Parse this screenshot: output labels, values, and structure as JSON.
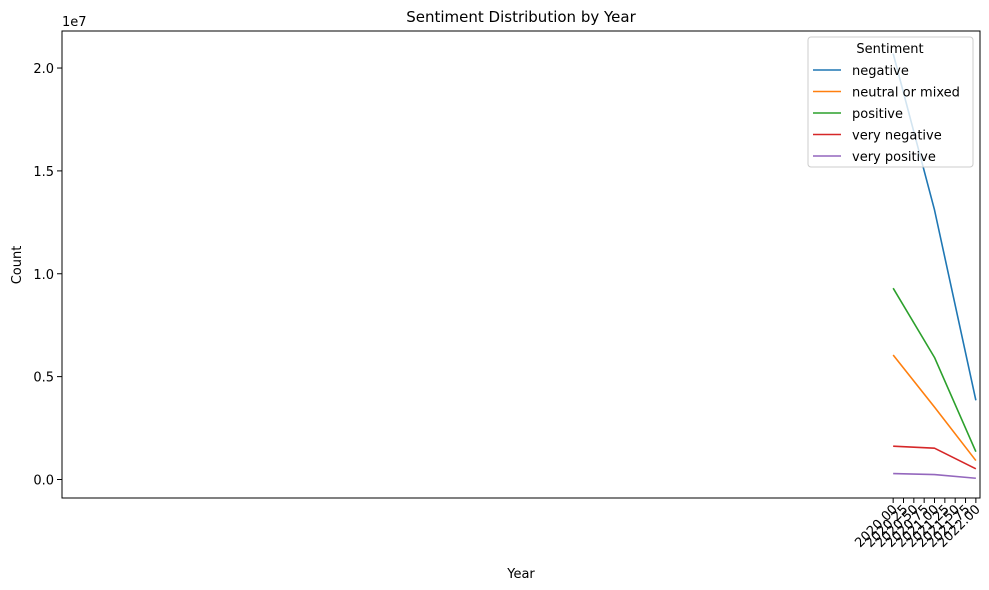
{
  "chart_data": {
    "type": "line",
    "title": "Sentiment Distribution by Year",
    "xlabel": "Year",
    "ylabel": "Count",
    "y_offset_label": "1e7",
    "xlim": [
      1999.9,
      2022.1
    ],
    "ylim": [
      -0.09,
      2.18
    ],
    "x_ticks": [
      2020.0,
      2020.25,
      2020.5,
      2020.75,
      2021.0,
      2021.25,
      2021.5,
      2021.75,
      2022.0
    ],
    "x_tick_labels": [
      "2020.00",
      "2020.25",
      "2020.50",
      "2020.75",
      "2021.00",
      "2021.25",
      "2021.50",
      "2021.75",
      "2022.00"
    ],
    "y_ticks": [
      0.0,
      0.5,
      1.0,
      1.5,
      2.0
    ],
    "y_tick_labels": [
      "0.0",
      "0.5",
      "1.0",
      "1.5",
      "2.0"
    ],
    "x": [
      2020,
      2021,
      2022
    ],
    "legend": {
      "title": "Sentiment",
      "placement": "top-right"
    },
    "series": [
      {
        "name": "negative",
        "color": "#1f77b4",
        "values": [
          20700000,
          13100000,
          3850000
        ]
      },
      {
        "name": "neutral or mixed",
        "color": "#ff7f0e",
        "values": [
          6050000,
          3520000,
          920000
        ]
      },
      {
        "name": "positive",
        "color": "#2ca02c",
        "values": [
          9300000,
          5930000,
          1350000
        ]
      },
      {
        "name": "very negative",
        "color": "#d62728",
        "values": [
          1620000,
          1520000,
          520000
        ]
      },
      {
        "name": "very positive",
        "color": "#9467bd",
        "values": [
          290000,
          240000,
          60000
        ]
      }
    ]
  }
}
